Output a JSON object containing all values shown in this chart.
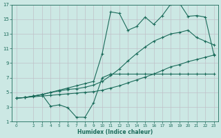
{
  "bg_color": "#cce8e4",
  "grid_color": "#c0c0c8",
  "line_color": "#1a6b5a",
  "xlabel": "Humidex (Indice chaleur)",
  "xlim": [
    -0.5,
    23.5
  ],
  "ylim": [
    1,
    17
  ],
  "yticks": [
    1,
    3,
    5,
    7,
    9,
    11,
    13,
    15,
    17
  ],
  "xticks": [
    0,
    2,
    3,
    4,
    5,
    6,
    7,
    8,
    9,
    10,
    11,
    12,
    13,
    14,
    15,
    16,
    17,
    18,
    19,
    20,
    21,
    22,
    23
  ],
  "line1_x": [
    0,
    1,
    2,
    3,
    4,
    5,
    6,
    7,
    8,
    9,
    10,
    11,
    12,
    13,
    14,
    15,
    16,
    17,
    18,
    19,
    20,
    21,
    22,
    23
  ],
  "line1_y": [
    4.2,
    4.3,
    4.4,
    4.5,
    4.6,
    4.7,
    4.8,
    4.9,
    5.0,
    5.1,
    5.3,
    5.6,
    5.9,
    6.3,
    6.7,
    7.1,
    7.5,
    8.0,
    8.5,
    8.8,
    9.2,
    9.5,
    9.8,
    10.1
  ],
  "line2_x": [
    0,
    1,
    2,
    3,
    4,
    5,
    6,
    7,
    8,
    9,
    10,
    11,
    12,
    13,
    14,
    15,
    16,
    17,
    18,
    19,
    20,
    21,
    22,
    23
  ],
  "line2_y": [
    4.2,
    4.3,
    4.5,
    4.7,
    5.0,
    5.2,
    5.4,
    5.5,
    5.7,
    6.0,
    6.5,
    7.3,
    8.2,
    9.3,
    10.3,
    11.2,
    12.0,
    12.5,
    13.0,
    13.2,
    13.5,
    12.5,
    12.0,
    11.5
  ],
  "line3_x": [
    1,
    2,
    3,
    4,
    5,
    6,
    7,
    8,
    9,
    10,
    11,
    12,
    13,
    14,
    15,
    16,
    17,
    18,
    19,
    20,
    21,
    22,
    23
  ],
  "line3_y": [
    4.3,
    4.5,
    4.7,
    5.0,
    5.3,
    5.6,
    5.9,
    6.2,
    6.5,
    10.3,
    16.0,
    15.8,
    13.5,
    14.0,
    15.3,
    14.3,
    15.5,
    17.1,
    17.2,
    15.4,
    15.5,
    15.3,
    10.2
  ],
  "line4_x": [
    0,
    1,
    2,
    3,
    4,
    5,
    6,
    7,
    8,
    9,
    10,
    11,
    12,
    13,
    14,
    15,
    16,
    17,
    18,
    19,
    20,
    21,
    22,
    23
  ],
  "line4_y": [
    4.2,
    4.3,
    4.5,
    4.7,
    3.1,
    3.3,
    2.9,
    1.6,
    1.6,
    3.6,
    7.0,
    7.5,
    7.5,
    7.5,
    7.5,
    7.5,
    7.5,
    7.5,
    7.5,
    7.5,
    7.5,
    7.5,
    7.5,
    7.5
  ]
}
